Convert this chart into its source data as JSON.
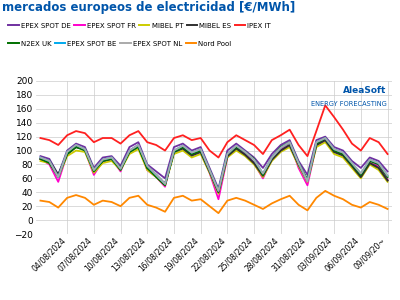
{
  "title": "mercados europeos de electricidad [€/MWh]",
  "title_color": "#0055aa",
  "background_color": "#ffffff",
  "grid_color": "#cccccc",
  "ylim": [
    -20,
    200
  ],
  "yticks": [
    -20,
    0,
    20,
    40,
    60,
    80,
    100,
    120,
    140,
    160,
    180,
    200
  ],
  "n_points": 40,
  "x_ticks_pos": [
    3,
    6,
    9,
    12,
    15,
    18,
    21,
    24,
    27,
    30,
    33,
    36,
    39
  ],
  "x_ticks_labels": [
    "04/08/2024",
    "07/08/2024",
    "10/08/2024",
    "13/08/2024",
    "16/08/2024",
    "19/08/2024",
    "22/08/2024",
    "25/08/2024",
    "28/08/2024",
    "31/08/2024",
    "03/09/2024",
    "06/09/2024",
    "09/09/20~"
  ],
  "series": {
    "EPEX SPOT DE": {
      "color": "#7030a0",
      "lw": 1.3,
      "values": [
        92,
        88,
        65,
        100,
        110,
        105,
        75,
        90,
        92,
        78,
        105,
        112,
        80,
        70,
        60,
        105,
        110,
        100,
        105,
        75,
        45,
        100,
        110,
        100,
        90,
        75,
        95,
        108,
        115,
        85,
        65,
        115,
        120,
        105,
        100,
        85,
        75,
        90,
        85,
        70
      ]
    },
    "EPEX SPOT FR": {
      "color": "#ff00cc",
      "lw": 1.3,
      "values": [
        88,
        80,
        55,
        95,
        108,
        100,
        65,
        85,
        88,
        70,
        100,
        108,
        72,
        62,
        48,
        100,
        105,
        95,
        100,
        68,
        30,
        90,
        105,
        95,
        82,
        60,
        88,
        102,
        112,
        75,
        50,
        108,
        115,
        100,
        95,
        80,
        65,
        82,
        78,
        58
      ]
    },
    "MIBEL PT": {
      "color": "#cccc00",
      "lw": 1.3,
      "values": [
        85,
        82,
        62,
        92,
        100,
        98,
        68,
        82,
        85,
        72,
        95,
        102,
        72,
        62,
        50,
        95,
        100,
        90,
        95,
        68,
        38,
        90,
        100,
        92,
        80,
        62,
        85,
        98,
        105,
        78,
        55,
        105,
        112,
        95,
        90,
        75,
        60,
        80,
        72,
        55
      ]
    },
    "MIBEL ES": {
      "color": "#303030",
      "lw": 1.5,
      "values": [
        88,
        85,
        65,
        95,
        105,
        102,
        72,
        85,
        88,
        75,
        98,
        106,
        75,
        65,
        52,
        98,
        103,
        93,
        98,
        70,
        40,
        92,
        103,
        94,
        82,
        64,
        87,
        100,
        108,
        80,
        57,
        108,
        115,
        98,
        93,
        78,
        62,
        82,
        75,
        57
      ]
    },
    "IPEX IT": {
      "color": "#ff2020",
      "lw": 1.3,
      "values": [
        118,
        115,
        108,
        122,
        128,
        125,
        112,
        118,
        118,
        110,
        122,
        128,
        112,
        108,
        100,
        118,
        122,
        115,
        118,
        100,
        90,
        112,
        122,
        115,
        108,
        95,
        115,
        122,
        130,
        108,
        92,
        128,
        165,
        148,
        130,
        110,
        100,
        118,
        112,
        95
      ]
    },
    "N2EX UK": {
      "color": "#007000",
      "lw": 1.3,
      "values": [
        88,
        82,
        62,
        95,
        105,
        100,
        70,
        85,
        88,
        72,
        98,
        105,
        75,
        62,
        50,
        98,
        105,
        95,
        100,
        72,
        42,
        95,
        105,
        98,
        88,
        65,
        90,
        105,
        112,
        82,
        58,
        110,
        118,
        100,
        95,
        80,
        65,
        85,
        80,
        62
      ]
    },
    "EPEX SPOT BE": {
      "color": "#00aaee",
      "lw": 1.3,
      "values": [
        90,
        85,
        62,
        98,
        108,
        102,
        72,
        87,
        90,
        74,
        100,
        108,
        78,
        65,
        52,
        100,
        107,
        97,
        102,
        72,
        42,
        95,
        107,
        98,
        87,
        67,
        90,
        104,
        112,
        82,
        56,
        112,
        118,
        102,
        97,
        82,
        67,
        87,
        82,
        64
      ]
    },
    "EPEX SPOT NL": {
      "color": "#aaaaaa",
      "lw": 1.3,
      "values": [
        90,
        85,
        62,
        98,
        108,
        102,
        72,
        87,
        90,
        74,
        100,
        108,
        78,
        65,
        52,
        100,
        107,
        97,
        102,
        72,
        42,
        95,
        107,
        98,
        87,
        67,
        90,
        104,
        112,
        82,
        56,
        112,
        118,
        102,
        97,
        82,
        67,
        87,
        82,
        64
      ]
    },
    "Nord Pool": {
      "color": "#ff8800",
      "lw": 1.3,
      "values": [
        28,
        26,
        18,
        32,
        36,
        32,
        22,
        28,
        26,
        20,
        32,
        35,
        22,
        18,
        12,
        32,
        35,
        28,
        30,
        20,
        10,
        28,
        32,
        28,
        22,
        16,
        24,
        30,
        35,
        22,
        14,
        32,
        42,
        35,
        30,
        22,
        18,
        26,
        22,
        16
      ]
    }
  },
  "watermark_line1": "AleaSoft",
  "watermark_line2": "ENERGY FORECASTING",
  "watermark_color": "#0055aa",
  "watermark_dot_color": "#0055aa"
}
